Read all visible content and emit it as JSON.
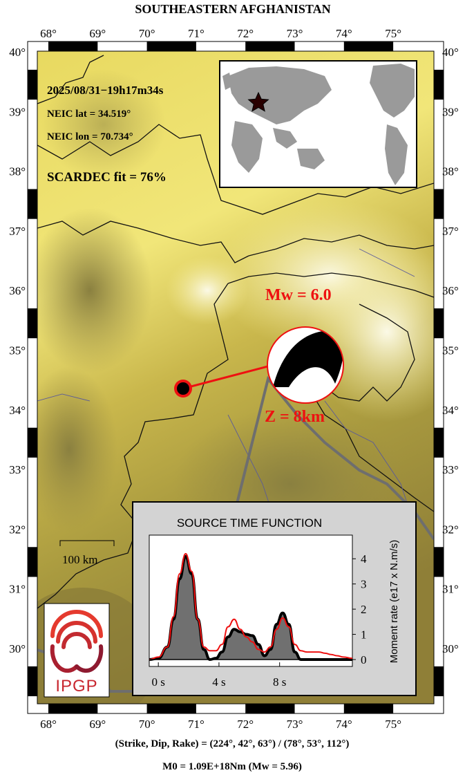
{
  "title": "SOUTHEASTERN AFGHANISTAN",
  "lon_ticks": [
    "68°",
    "69°",
    "70°",
    "71°",
    "72°",
    "73°",
    "74°",
    "75°"
  ],
  "lat_ticks": [
    "40°",
    "39°",
    "38°",
    "37°",
    "36°",
    "35°",
    "34°",
    "33°",
    "32°",
    "31°",
    "30°"
  ],
  "event": {
    "datetime": "2025/08/31−19h17m34s",
    "lat": "NEIC lat  = 34.519°",
    "lon": "NEIC lon = 70.734°",
    "fit": "SCARDEC fit = 76%"
  },
  "magnitude_label": "Mw = 6.0",
  "depth_label": "Z =   8km",
  "scale_label": "100 km",
  "stf": {
    "title": "SOURCE TIME FUNCTION",
    "ylabel": "Moment rate (e17 x N.m/s)",
    "x_ticks": [
      "0 s",
      "4 s",
      "8 s"
    ],
    "y_ticks": [
      "0",
      "1",
      "2",
      "3",
      "4"
    ]
  },
  "logo_text": "IPGP",
  "bottom": {
    "line1": "(Strike, Dip, Rake) = (224°, 42°, 63°) / (78°, 53°, 112°)",
    "line2": "M0 = 1.09E+18Nm  (Mw = 5.96)"
  },
  "colors": {
    "epicenter": "#ee1111",
    "label_red": "#ee1111",
    "stf_fill": "#707070",
    "stf_red": "#ee1111",
    "panel_gray": "#d3d3d3"
  },
  "chart_data": {
    "type": "area",
    "title": "SOURCE TIME FUNCTION",
    "xlabel": "",
    "ylabel": "Moment rate (e17 x N.m/s)",
    "xlim": [
      -0.6,
      12.8
    ],
    "ylim": [
      0,
      4.5
    ],
    "x_ticks": [
      0,
      4,
      8
    ],
    "y_ticks": [
      0,
      1,
      2,
      3,
      4
    ],
    "series": [
      {
        "x": [
          -0.6,
          0.0,
          0.6,
          1.0,
          1.4,
          1.8,
          2.2,
          2.6,
          3.0,
          3.4,
          3.8,
          4.2,
          4.6,
          5.0,
          5.4,
          5.8,
          6.2,
          6.6,
          7.0,
          7.4,
          7.8,
          8.2,
          8.6,
          9.0,
          9.4,
          9.8,
          10.2,
          10.6,
          11.0,
          11.4,
          11.8,
          12.2,
          12.8
        ],
        "y": [
          0,
          0.05,
          0.5,
          1.6,
          3.2,
          4.1,
          3.4,
          1.6,
          0.4,
          0,
          0.05,
          0.3,
          0.9,
          1.2,
          1.1,
          1.0,
          0.95,
          0.6,
          0.15,
          0.4,
          1.4,
          1.85,
          1.4,
          0.3,
          0,
          0,
          0,
          0,
          0,
          0,
          0,
          0,
          0
        ]
      },
      {
        "x": [
          -0.6,
          0.0,
          0.6,
          1.0,
          1.4,
          1.8,
          2.2,
          2.6,
          3.0,
          3.4,
          3.8,
          4.2,
          4.6,
          5.0,
          5.4,
          5.8,
          6.2,
          6.6,
          7.0,
          7.4,
          7.8,
          8.2,
          8.6,
          9.0,
          9.4,
          9.8,
          10.2,
          10.6,
          11.0,
          11.4,
          11.8,
          12.2,
          12.8
        ],
        "y": [
          0,
          0.1,
          0.5,
          1.7,
          3.4,
          4.2,
          3.5,
          1.6,
          0.5,
          0.35,
          0.35,
          0.6,
          1.3,
          1.6,
          1.2,
          0.9,
          0.7,
          0.4,
          0.3,
          0.5,
          1.2,
          1.65,
          1.3,
          0.6,
          0.35,
          0.3,
          0.3,
          0.3,
          0.25,
          0.2,
          0.15,
          0.1,
          0.05
        ]
      }
    ]
  }
}
